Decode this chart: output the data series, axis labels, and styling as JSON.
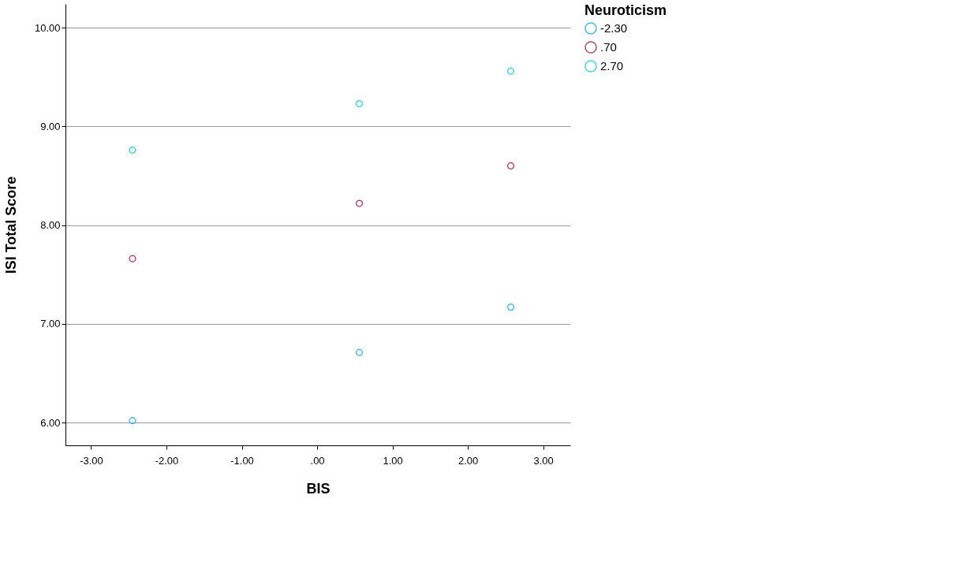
{
  "chart_data": {
    "type": "scatter",
    "xlabel": "BIS",
    "ylabel": "ISI Total Score",
    "legend_title": "Neuroticism",
    "series": [
      {
        "name": "-2.30",
        "color": "#4db8f0",
        "x": [
          -2.45,
          0.56,
          2.57
        ],
        "values": [
          6.02,
          6.71,
          7.17
        ]
      },
      {
        "name": ".70",
        "color": "#b04a6c",
        "x": [
          -2.45,
          0.56,
          2.57
        ],
        "values": [
          7.66,
          8.22,
          8.6
        ]
      },
      {
        "name": "2.70",
        "color": "#3cd6d6",
        "x": [
          -2.45,
          0.56,
          2.57
        ],
        "values": [
          8.76,
          9.23,
          9.56
        ]
      }
    ],
    "xlim": [
      -3.34,
      3.36
    ],
    "ylim": [
      5.77,
      10.24
    ],
    "xticks": [
      {
        "value": -3,
        "label": "-3.00"
      },
      {
        "value": -2,
        "label": "-2.00"
      },
      {
        "value": -1,
        "label": "-1.00"
      },
      {
        "value": 0,
        "label": ".00"
      },
      {
        "value": 1,
        "label": "1.00"
      },
      {
        "value": 2,
        "label": "2.00"
      },
      {
        "value": 3,
        "label": "3.00"
      }
    ],
    "yticks": [
      {
        "value": 6,
        "label": "6.00"
      },
      {
        "value": 7,
        "label": "7.00"
      },
      {
        "value": 8,
        "label": "8.00"
      },
      {
        "value": 9,
        "label": "9.00"
      },
      {
        "value": 10,
        "label": "10.00"
      }
    ],
    "grid": "y",
    "legend": "top right",
    "marker": "circle"
  }
}
